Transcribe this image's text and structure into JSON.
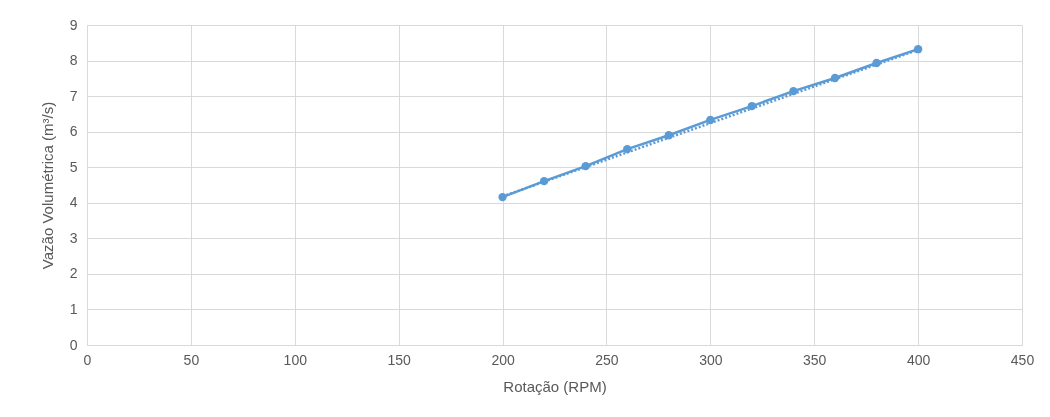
{
  "chart_data": {
    "type": "line",
    "xlabel": "Rotação (RPM)",
    "ylabel": "Vazão Volumétrica (m³/s)",
    "x": [
      200,
      220,
      240,
      260,
      280,
      300,
      320,
      340,
      360,
      380,
      400
    ],
    "series": [
      {
        "color": "#5b9bd5",
        "marker": "circle",
        "line_style": "solid",
        "values": [
          4.16,
          4.61,
          5.03,
          5.51,
          5.9,
          6.33,
          6.72,
          7.14,
          7.51,
          7.93,
          8.32
        ]
      },
      {
        "type": "line",
        "color": "#5b9bd5",
        "line_style": "dotted",
        "x": [
          200,
          400
        ],
        "values": [
          4.18,
          8.3
        ]
      }
    ],
    "xlim": [
      0,
      450
    ],
    "xticks": [
      0,
      50,
      100,
      150,
      200,
      250,
      300,
      350,
      400,
      450
    ],
    "ylim": [
      0,
      9
    ],
    "yticks": [
      0,
      1,
      2,
      3,
      4,
      5,
      6,
      7,
      8,
      9
    ],
    "grid": true
  }
}
